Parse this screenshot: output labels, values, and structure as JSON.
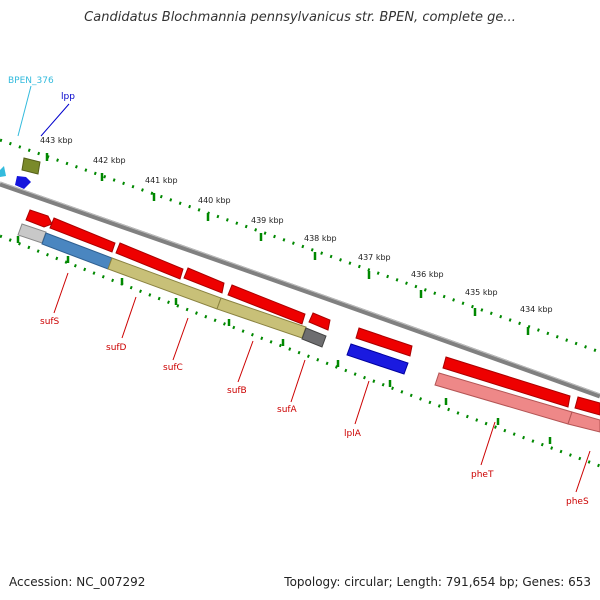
{
  "title": "Candidatus Blochmannia pennsylvanicus str. BPEN, complete ge...",
  "footer": {
    "accession": "Accession: NC_007292",
    "summary": "Topology: circular; Length: 791,654 bp; Genes: 653"
  },
  "ruler": {
    "unit": "kbp",
    "ticks": [
      "443 kbp",
      "442 kbp",
      "441 kbp",
      "440 kbp",
      "439 kbp",
      "438 kbp",
      "437 kbp",
      "436 kbp",
      "435 kbp",
      "434 kbp"
    ]
  },
  "colors": {
    "backbone": "#808080",
    "forward_gene": "#ee0000",
    "reverse_label": "#cc0000",
    "lpp": "#0000cc",
    "bpen376": "#33bbdd",
    "tick_green": "#008800"
  },
  "forward_genes": {
    "top_labels": [
      "BPEN_376",
      "lpp"
    ]
  },
  "reverse_genes": {
    "labels": [
      "sufS",
      "sufD",
      "sufC",
      "sufB",
      "sufA",
      "lplA",
      "pheT",
      "pheS"
    ]
  }
}
